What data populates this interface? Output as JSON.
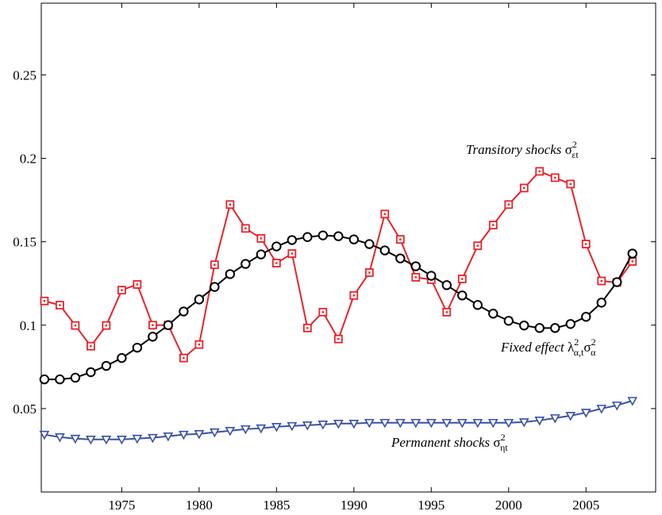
{
  "chart_data": {
    "type": "line",
    "x": [
      1970,
      1971,
      1972,
      1973,
      1974,
      1975,
      1976,
      1977,
      1978,
      1979,
      1980,
      1981,
      1982,
      1983,
      1984,
      1985,
      1986,
      1987,
      1988,
      1989,
      1990,
      1991,
      1992,
      1993,
      1994,
      1995,
      1996,
      1997,
      1998,
      1999,
      2000,
      2001,
      2002,
      2003,
      2004,
      2005,
      2006,
      2007,
      2008
    ],
    "series": [
      {
        "name": "Transitory shocks",
        "color": "#e8232a",
        "marker": "square",
        "values": [
          0.1145,
          0.112,
          0.0998,
          0.0874,
          0.0998,
          0.121,
          0.1244,
          0.1,
          0.1,
          0.0803,
          0.0884,
          0.1362,
          0.1723,
          0.158,
          0.152,
          0.1372,
          0.1429,
          0.0983,
          0.1078,
          0.0917,
          0.1178,
          0.1315,
          0.1666,
          0.1514,
          0.1287,
          0.1273,
          0.1078,
          0.1277,
          0.1476,
          0.16,
          0.1723,
          0.1822,
          0.1922,
          0.1884,
          0.1846,
          0.1486,
          0.1265,
          0.1256,
          0.1382
        ]
      },
      {
        "name": "Fixed effect",
        "color": "#000000",
        "marker": "circle",
        "values": [
          0.0675,
          0.0675,
          0.0685,
          0.0718,
          0.0756,
          0.0803,
          0.0865,
          0.0931,
          0.1,
          0.1082,
          0.1154,
          0.1229,
          0.1306,
          0.1367,
          0.1424,
          0.1472,
          0.151,
          0.1528,
          0.1538,
          0.1533,
          0.1514,
          0.1486,
          0.1448,
          0.14,
          0.1353,
          0.1296,
          0.124,
          0.1178,
          0.1121,
          0.1069,
          0.1026,
          0.0998,
          0.0983,
          0.0983,
          0.1007,
          0.105,
          0.1135,
          0.1258,
          0.1429
        ]
      },
      {
        "name": "Permanent shocks",
        "color": "#3a4fa8",
        "marker": "triangle-down",
        "values": [
          0.0344,
          0.0329,
          0.032,
          0.0315,
          0.0315,
          0.0315,
          0.032,
          0.0325,
          0.0334,
          0.0344,
          0.0348,
          0.0358,
          0.0367,
          0.0377,
          0.0382,
          0.0391,
          0.0396,
          0.04,
          0.0405,
          0.041,
          0.041,
          0.0415,
          0.0415,
          0.0415,
          0.0415,
          0.0415,
          0.0415,
          0.0415,
          0.0415,
          0.0415,
          0.0415,
          0.0419,
          0.0429,
          0.0443,
          0.0457,
          0.0476,
          0.05,
          0.0519,
          0.0547
        ]
      }
    ],
    "annotations": [
      [
        {
          "text": "Transitory shocks "
        },
        {
          "text": "σ"
        },
        {
          "text": "2",
          "pos": "sup"
        },
        {
          "text": "εt",
          "pos": "sub"
        }
      ],
      [
        {
          "text": "Fixed effect "
        },
        {
          "text": "λ"
        },
        {
          "text": "2",
          "pos": "sup"
        },
        {
          "text": "α,t",
          "pos": "sub"
        },
        {
          "text": "σ"
        },
        {
          "text": "2",
          "pos": "sup"
        },
        {
          "text": "α",
          "pos": "sub"
        }
      ],
      [
        {
          "text": "Permanent shocks "
        },
        {
          "text": "σ"
        },
        {
          "text": "2",
          "pos": "sup"
        },
        {
          "text": "ηt",
          "pos": "sub"
        }
      ]
    ],
    "xlim": [
      1969.8,
      2009.5
    ],
    "xticks": [
      1975,
      1980,
      1985,
      1990,
      1995,
      2000,
      2005
    ],
    "ylim": [
      0,
      0.293
    ],
    "yticks": [
      0.05,
      0.1,
      0.15,
      0.2,
      0.25
    ],
    "grid": false
  }
}
